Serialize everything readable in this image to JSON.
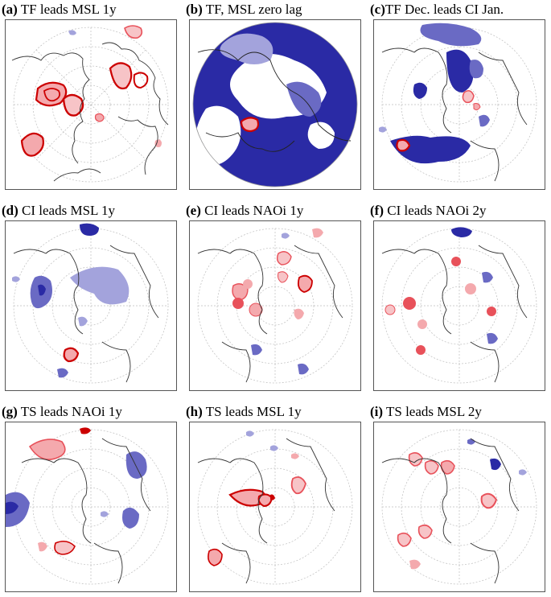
{
  "figure": {
    "panels": [
      {
        "id": "a",
        "label": "(a)",
        "title": "TF leads MSL 1y"
      },
      {
        "id": "b",
        "label": "(b)",
        "title": "TF, MSL zero lag"
      },
      {
        "id": "c",
        "label": "(c)",
        "title": "TF Dec. leads  CI Jan."
      },
      {
        "id": "d",
        "label": "(d)",
        "title": " CI leads MSL 1y"
      },
      {
        "id": "e",
        "label": "(e)",
        "title": " CI leads NAOi 1y"
      },
      {
        "id": "f",
        "label": "(f)",
        "title": "CI leads NAOi 2y"
      },
      {
        "id": "g",
        "label": "(g)",
        "title": " TS leads NAOi 1y"
      },
      {
        "id": "h",
        "label": "(h)",
        "title": "TS leads MSL 1y"
      },
      {
        "id": "i",
        "label": "(i)",
        "title": " TS leads MSL 2y"
      }
    ]
  },
  "colors": {
    "positive_light": "#f4a9ad",
    "positive_mid": "#e8515a",
    "positive_strong": "#cc0000",
    "negative_light": "#a3a3dc",
    "negative_mid": "#6a6ac4",
    "negative_strong": "#2a2aa5",
    "coastline": "#333333",
    "grid": "#bdbdbd"
  }
}
